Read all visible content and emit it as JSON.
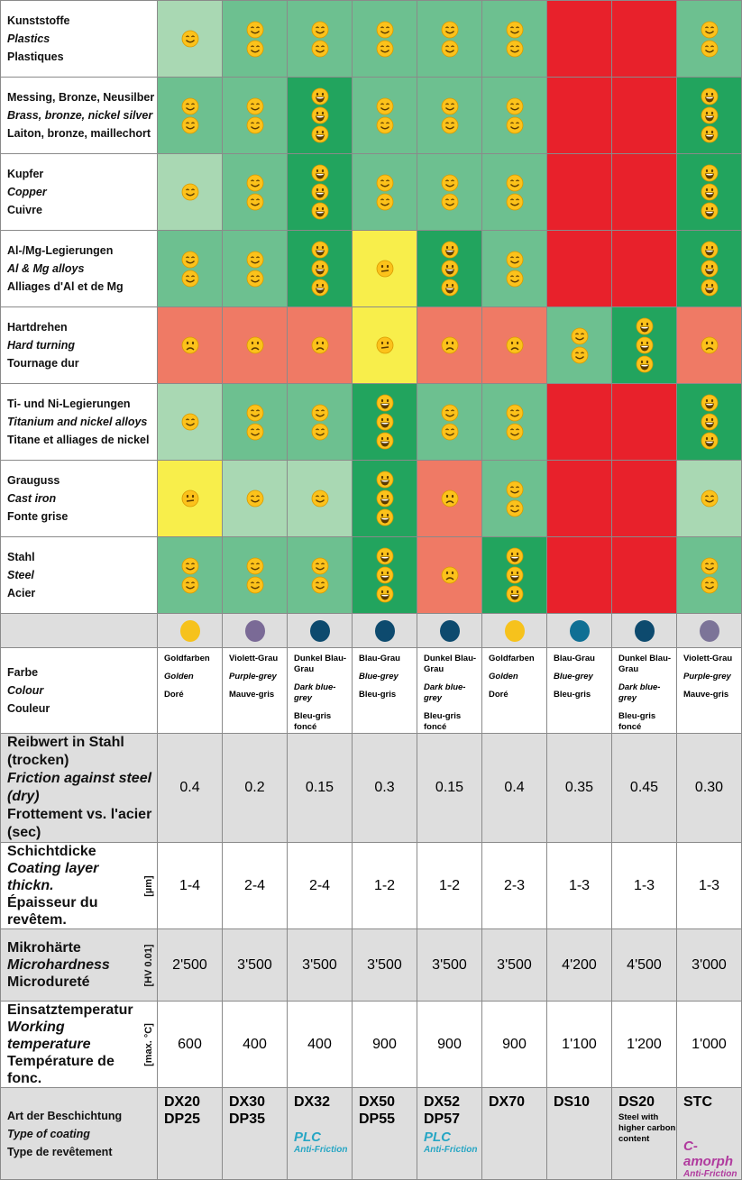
{
  "materials": [
    {
      "de": "Kunststoffe",
      "en": "Plastics",
      "fr": "Plastiques",
      "ratings": [
        "1",
        "2",
        "2",
        "2",
        "2",
        "2",
        "R",
        "R",
        "2"
      ]
    },
    {
      "de": "Messing, Bronze, Neusilber",
      "en": "Brass, bronze, nickel silver",
      "fr": "Laiton, bronze, maillechort",
      "ratings": [
        "2",
        "2",
        "3",
        "2",
        "2",
        "2",
        "R",
        "R",
        "3"
      ]
    },
    {
      "de": "Kupfer",
      "en": "Copper",
      "fr": "Cuivre",
      "ratings": [
        "1",
        "2",
        "3",
        "2",
        "2",
        "2",
        "R",
        "R",
        "3"
      ]
    },
    {
      "de": "Al-/Mg-Legierungen",
      "en": "Al & Mg alloys",
      "fr": "Alliages d'Al et de Mg",
      "ratings": [
        "2",
        "2",
        "3",
        "Y",
        "3",
        "2",
        "R",
        "R",
        "3"
      ]
    },
    {
      "de": "Hartdrehen",
      "en": "Hard turning",
      "fr": "Tournage dur",
      "ratings": [
        "S",
        "S",
        "S",
        "Y",
        "S",
        "S",
        "2",
        "3",
        "S"
      ]
    },
    {
      "de": "Ti- und Ni-Legierungen",
      "en": "Titanium and nickel alloys",
      "fr": "Titane et alliages de nickel",
      "ratings": [
        "1",
        "2",
        "2",
        "3",
        "2",
        "2",
        "R",
        "R",
        "3"
      ]
    },
    {
      "de": "Grauguss",
      "en": "Cast iron",
      "fr": "Fonte grise",
      "ratings": [
        "Y",
        "1",
        "1",
        "3",
        "S",
        "2",
        "R",
        "R",
        "1"
      ]
    },
    {
      "de": "Stahl",
      "en": "Steel",
      "fr": "Acier",
      "ratings": [
        "2",
        "2",
        "2",
        "3",
        "S",
        "3",
        "R",
        "R",
        "2"
      ]
    }
  ],
  "dot_colors": [
    "#f6c21c",
    "#7a6a96",
    "#0d4a6e",
    "#0d4a6e",
    "#0d4a6e",
    "#f6c21c",
    "#0f6f94",
    "#0d4a6e",
    "#7c7498"
  ],
  "colour": {
    "de": "Farbe",
    "en": "Colour",
    "fr": "Couleur",
    "values": [
      [
        "Goldfarben",
        "Golden",
        "Doré"
      ],
      [
        "Violett-Grau",
        "Purple-grey",
        "Mauve-gris"
      ],
      [
        "Dunkel Blau-Grau",
        "Dark blue-grey",
        "Bleu-gris foncé"
      ],
      [
        "Blau-Grau",
        "Blue-grey",
        "Bleu-gris"
      ],
      [
        "Dunkel Blau-Grau",
        "Dark blue-grey",
        "Bleu-gris foncé"
      ],
      [
        "Goldfarben",
        "Golden",
        "Doré"
      ],
      [
        "Blau-Grau",
        "Blue-grey",
        "Bleu-gris"
      ],
      [
        "Dunkel Blau-Grau",
        "Dark blue-grey",
        "Bleu-gris foncé"
      ],
      [
        "Violett-Grau",
        "Purple-grey",
        "Mauve-gris"
      ]
    ]
  },
  "props": [
    {
      "de": "Reibwert in Stahl (trocken)",
      "en": "Friction against steel (dry)",
      "fr": "Frottement vs. l'acier (sec)",
      "unit": "",
      "values": [
        "0.4",
        "0.2",
        "0.15",
        "0.3",
        "0.15",
        "0.4",
        "0.35",
        "0.45",
        "0.30"
      ],
      "gray": true
    },
    {
      "de": "Schichtdicke",
      "en": "Coating layer thickn.",
      "fr": "Épaisseur du revêtem.",
      "unit": "[µm]",
      "values": [
        "1-4",
        "2-4",
        "2-4",
        "1-2",
        "1-2",
        "2-3",
        "1-3",
        "1-3",
        "1-3"
      ],
      "gray": false
    },
    {
      "de": "Mikrohärte",
      "en": "Microhardness",
      "fr": "Microdureté",
      "unit": "[HV 0.01]",
      "values": [
        "2'500",
        "3'500",
        "3'500",
        "3'500",
        "3'500",
        "3'500",
        "4'200",
        "4'500",
        "3'000"
      ],
      "gray": true
    },
    {
      "de": "Einsatztemperatur",
      "en": "Working temperature",
      "fr": "Température de fonc.",
      "unit": "[max. °C]",
      "values": [
        "600",
        "400",
        "400",
        "900",
        "900",
        "900",
        "1'100",
        "1'200",
        "1'000"
      ],
      "gray": false
    }
  ],
  "coating": {
    "de": "Art der Beschichtung",
    "en": "Type of coating",
    "fr": "Type de revêtement",
    "items": [
      {
        "codes": "DX20 DP25"
      },
      {
        "codes": "DX30 DP35"
      },
      {
        "codes": "DX32",
        "tag": "PLC",
        "sub": "Anti-Friction"
      },
      {
        "codes": "DX50 DP55"
      },
      {
        "codes": "DX52 DP57",
        "tag": "PLC",
        "sub": "Anti-Friction"
      },
      {
        "codes": "DX70"
      },
      {
        "codes": "DS10"
      },
      {
        "codes": "DS20",
        "note": "Steel with higher carbon content"
      },
      {
        "codes": "STC",
        "tag": "C-amorph",
        "sub": "Anti-Friction",
        "purple": true
      }
    ]
  }
}
